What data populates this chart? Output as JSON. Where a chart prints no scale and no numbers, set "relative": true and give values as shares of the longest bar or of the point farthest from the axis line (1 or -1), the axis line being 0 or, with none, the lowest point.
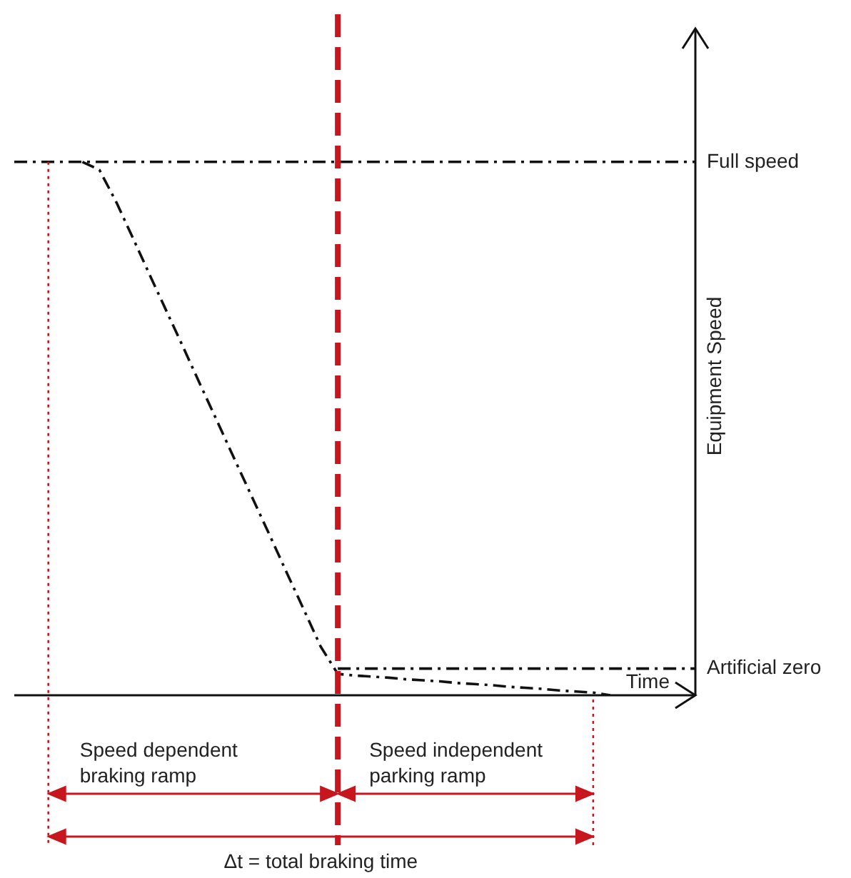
{
  "chart_data": {
    "type": "line",
    "relative": true,
    "xlabel": "Time",
    "ylabel": "Equipment Speed",
    "marker": "none",
    "categories": [
      null,
      null,
      null,
      null,
      null,
      null,
      null,
      null,
      null,
      null,
      null,
      null,
      null,
      null,
      null,
      null,
      null,
      null,
      null,
      null,
      null,
      null,
      null,
      null,
      null,
      null,
      null,
      null,
      null,
      null,
      null,
      null,
      null,
      null,
      null,
      null,
      null,
      null,
      null,
      null,
      null
    ],
    "series": [
      {
        "color": "#111111",
        "line_style": "dashed",
        "values": [
          null,
          null,
          null,
          null,
          1,
          0.985,
          0.924,
          0.855,
          0.785,
          0.716,
          0.647,
          0.577,
          0.508,
          0.438,
          0.369,
          0.3,
          0.23,
          0.161,
          0.091,
          0.04,
          0.037,
          0.035,
          0.033,
          0.03,
          0.028,
          0.026,
          0.023,
          0.021,
          0.019,
          0.016,
          0.014,
          0.012,
          0.009,
          0.007,
          0.005,
          0,
          null,
          null,
          null,
          null,
          null
        ]
      },
      {
        "name": "Full speed",
        "color": "#111111",
        "line_style": "dashed",
        "values": [
          1,
          1,
          1,
          1,
          1,
          1,
          1,
          1,
          1,
          1,
          1,
          1,
          1,
          1,
          1,
          1,
          1,
          1,
          1,
          1,
          1,
          1,
          1,
          1,
          1,
          1,
          1,
          1,
          1,
          1,
          1,
          1,
          1,
          1,
          1,
          1,
          1,
          1,
          1,
          1,
          1
        ]
      },
      {
        "name": "Artificial zero",
        "color": "#111111",
        "line_style": "dashed",
        "values": [
          null,
          null,
          null,
          null,
          null,
          null,
          null,
          null,
          null,
          null,
          null,
          null,
          null,
          null,
          null,
          null,
          null,
          null,
          null,
          0.05,
          0.05,
          0.05,
          0.05,
          0.05,
          0.05,
          0.05,
          0.05,
          0.05,
          0.05,
          0.05,
          0.05,
          0.05,
          0.05,
          0.05,
          0.05,
          0.05,
          0.05,
          0.05,
          0.05,
          0.05,
          0.05
        ]
      }
    ],
    "annotations": [
      "Speed dependent braking ramp",
      "Speed independent parking ramp",
      "Δt = total braking time"
    ]
  }
}
